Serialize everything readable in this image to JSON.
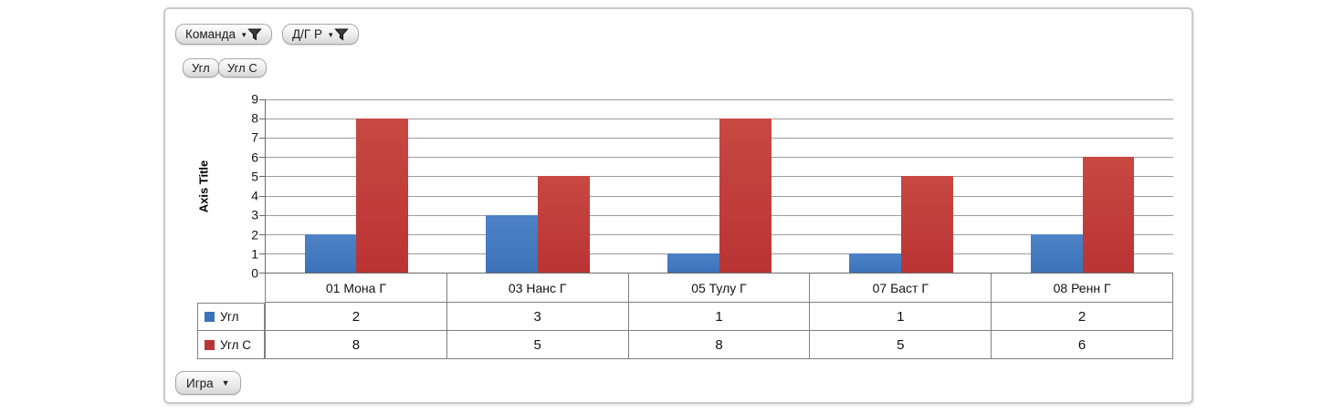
{
  "panel": {
    "background": "#ffffff",
    "border_color": "#c9c9c9"
  },
  "filter_buttons": [
    {
      "label": "Команда"
    },
    {
      "label": "Д/Г Р"
    }
  ],
  "series_buttons": [
    {
      "label": "Угл"
    },
    {
      "label": "Угл С"
    }
  ],
  "axis_field_button": {
    "label": "Игра",
    "dropdown_icon": "▼"
  },
  "icons": {
    "filter_dropdown_arrow": "▾"
  },
  "chart_data": {
    "type": "bar",
    "title": "",
    "axis_title": "Axis Title",
    "xlabel": "",
    "ylabel": "Axis Title",
    "categories": [
      "01 Мона Г",
      "03 Нанс Г",
      "05 Тулу Г",
      "07 Баст Г",
      "08 Ренн Г"
    ],
    "series": [
      {
        "name": "Угл",
        "color": "#3c72b8",
        "color_light": "#4d83c6",
        "values": [
          2,
          3,
          1,
          1,
          2
        ]
      },
      {
        "name": "Угл С",
        "color": "#b93434",
        "color_light": "#c84842",
        "values": [
          8,
          5,
          8,
          5,
          6
        ]
      }
    ],
    "ylim": [
      0,
      9
    ],
    "ytick_step": 1,
    "grid": true,
    "gridline_color": "#9c9c9c",
    "axis_line_color": "#6b6b6b",
    "legend_position": "data-table-left",
    "data_table_shown": true
  }
}
